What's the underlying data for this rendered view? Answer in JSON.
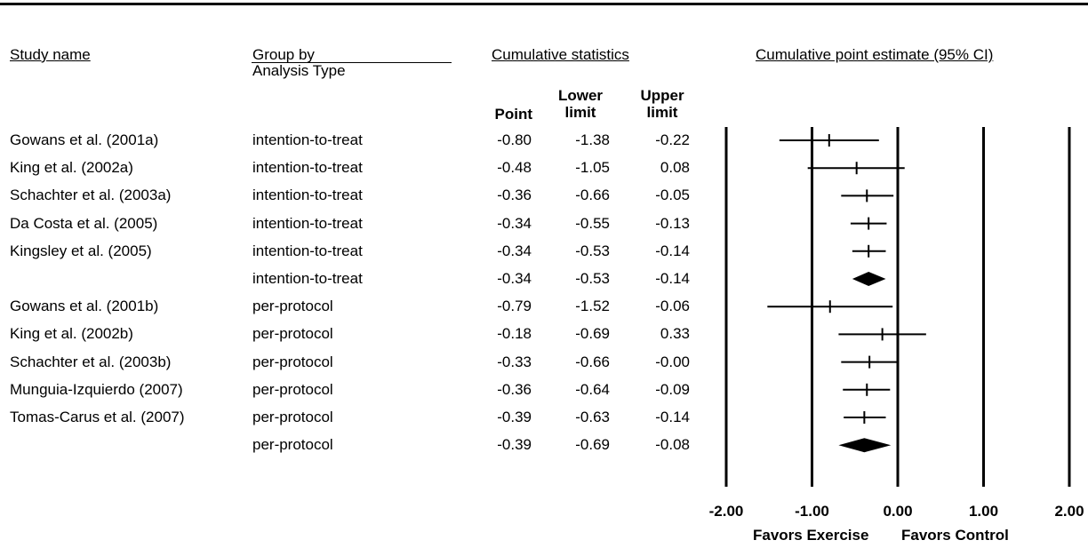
{
  "headers": {
    "study_name": "Study name",
    "group_by": "Group by",
    "group_sub": "Analysis Type",
    "cumulative_stats": "Cumulative statistics",
    "cumulative_estimate": "Cumulative point estimate (95% CI)",
    "point": "Point",
    "lower": "Lower\nlimit",
    "upper": "Upper\nlimit"
  },
  "rows": [
    {
      "study": "Gowans et al. (2001a)",
      "group": "intention-to-treat",
      "point": "-0.80",
      "lower": "-1.38",
      "upper": "-0.22"
    },
    {
      "study": "King et al. (2002a)",
      "group": "intention-to-treat",
      "point": "-0.48",
      "lower": "-1.05",
      "upper": "0.08"
    },
    {
      "study": "Schachter et al. (2003a)",
      "group": "intention-to-treat",
      "point": "-0.36",
      "lower": "-0.66",
      "upper": "-0.05"
    },
    {
      "study": "Da Costa et al. (2005)",
      "group": "intention-to-treat",
      "point": "-0.34",
      "lower": "-0.55",
      "upper": "-0.13"
    },
    {
      "study": "Kingsley et al. (2005)",
      "group": "intention-to-treat",
      "point": "-0.34",
      "lower": "-0.53",
      "upper": "-0.14"
    },
    {
      "study": "",
      "group": "intention-to-treat",
      "point": "-0.34",
      "lower": "-0.53",
      "upper": "-0.14"
    },
    {
      "study": "Gowans et al. (2001b)",
      "group": "per-protocol",
      "point": "-0.79",
      "lower": "-1.52",
      "upper": "-0.06"
    },
    {
      "study": "King et al. (2002b)",
      "group": "per-protocol",
      "point": "-0.18",
      "lower": "-0.69",
      "upper": "0.33"
    },
    {
      "study": "Schachter et al. (2003b)",
      "group": "per-protocol",
      "point": "-0.33",
      "lower": "-0.66",
      "upper": "-0.00"
    },
    {
      "study": "Munguia-Izquierdo (2007)",
      "group": "per-protocol",
      "point": "-0.36",
      "lower": "-0.64",
      "upper": "-0.09"
    },
    {
      "study": "Tomas-Carus et al. (2007)",
      "group": "per-protocol",
      "point": "-0.39",
      "lower": "-0.63",
      "upper": "-0.14"
    },
    {
      "study": "",
      "group": "per-protocol",
      "point": "-0.39",
      "lower": "-0.69",
      "upper": "-0.08"
    }
  ],
  "footer": {
    "favors_left": "Favors Exercise",
    "favors_right": "Favors Control"
  },
  "chart_data": {
    "type": "scatter",
    "xlim": [
      -2,
      2
    ],
    "ticks": [
      -2,
      -1,
      0,
      1,
      2
    ],
    "tick_labels": [
      "-2.00",
      "-1.00",
      "0.00",
      "1.00",
      "2.00"
    ],
    "points": [
      {
        "point": -0.8,
        "lower": -1.38,
        "upper": -0.22,
        "summary": false
      },
      {
        "point": -0.48,
        "lower": -1.05,
        "upper": 0.08,
        "summary": false
      },
      {
        "point": -0.36,
        "lower": -0.66,
        "upper": -0.05,
        "summary": false
      },
      {
        "point": -0.34,
        "lower": -0.55,
        "upper": -0.13,
        "summary": false
      },
      {
        "point": -0.34,
        "lower": -0.53,
        "upper": -0.14,
        "summary": false
      },
      {
        "point": -0.34,
        "lower": -0.53,
        "upper": -0.14,
        "summary": true
      },
      {
        "point": -0.79,
        "lower": -1.52,
        "upper": -0.06,
        "summary": false
      },
      {
        "point": -0.18,
        "lower": -0.69,
        "upper": 0.33,
        "summary": false
      },
      {
        "point": -0.33,
        "lower": -0.66,
        "upper": -0.0,
        "summary": false
      },
      {
        "point": -0.36,
        "lower": -0.64,
        "upper": -0.09,
        "summary": false
      },
      {
        "point": -0.39,
        "lower": -0.63,
        "upper": -0.14,
        "summary": false
      },
      {
        "point": -0.39,
        "lower": -0.69,
        "upper": -0.08,
        "summary": true
      }
    ]
  }
}
